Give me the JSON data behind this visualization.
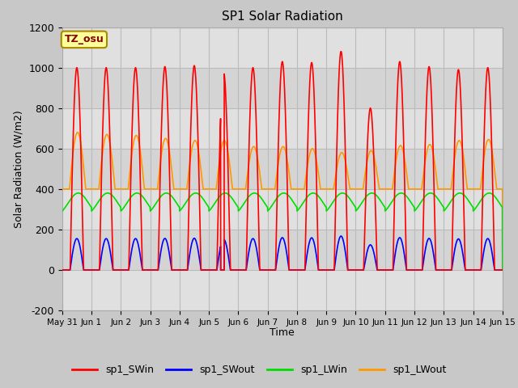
{
  "title": "SP1 Solar Radiation",
  "ylabel": "Solar Radiation (W/m2)",
  "xlabel": "Time",
  "ylim": [
    -200,
    1200
  ],
  "xlim_days": [
    0,
    15
  ],
  "annotation_text": "TZ_osu",
  "annotation_bg": "#ffff99",
  "annotation_border": "#aa8800",
  "legend_entries": [
    "sp1_SWin",
    "sp1_SWout",
    "sp1_LWin",
    "sp1_LWout"
  ],
  "line_colors": [
    "#ff0000",
    "#0000ff",
    "#00dd00",
    "#ff9900"
  ],
  "xtick_labels": [
    "May 31",
    "Jun 1",
    "Jun 2",
    "Jun 3",
    "Jun 4",
    "Jun 5",
    "Jun 6",
    "Jun 7",
    "Jun 8",
    "Jun 9",
    "Jun 10",
    "Jun 11",
    "Jun 12",
    "Jun 13",
    "Jun 14",
    "Jun 15"
  ],
  "ytick_values": [
    -200,
    0,
    200,
    400,
    600,
    800,
    1000,
    1200
  ],
  "num_days": 15,
  "points_per_day": 288
}
